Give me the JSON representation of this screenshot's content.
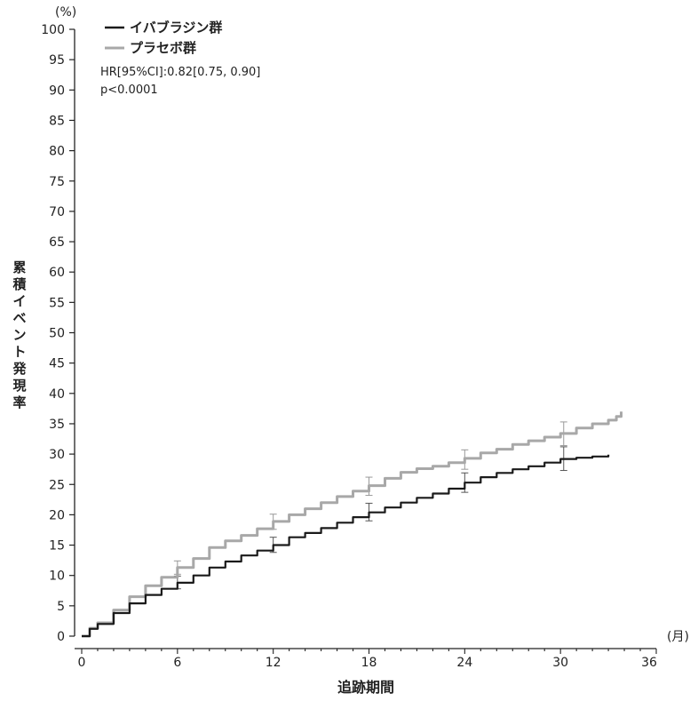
{
  "chart_data": {
    "type": "line",
    "title": "",
    "xlabel": "追跡期間",
    "ylabel_chars": [
      "累",
      "積",
      "イ",
      "ベ",
      "ン",
      "ト",
      "発",
      "現",
      "率"
    ],
    "y_unit": "(%)",
    "x_unit": "(月)",
    "xlim": [
      0,
      36
    ],
    "ylim": [
      0,
      100
    ],
    "x_ticks": [
      0,
      6,
      12,
      18,
      24,
      30,
      36
    ],
    "y_ticks": [
      0,
      5,
      10,
      15,
      20,
      25,
      30,
      35,
      40,
      45,
      50,
      55,
      60,
      65,
      70,
      75,
      80,
      85,
      90,
      95,
      100
    ],
    "grid": false,
    "legend_position": "top-left",
    "annotations": {
      "hr": "HR[95%CI]:0.82[0.75, 0.90]",
      "p": "p<0.0001"
    },
    "series": [
      {
        "name": "イバブラジン群",
        "color": "#1a1a1a",
        "x": [
          0,
          0.5,
          1,
          2,
          3,
          4,
          5,
          6,
          7,
          8,
          9,
          10,
          11,
          12,
          13,
          14,
          15,
          16,
          17,
          18,
          19,
          20,
          21,
          22,
          23,
          24,
          25,
          26,
          27,
          28,
          29,
          30,
          31,
          32,
          33
        ],
        "y": [
          0,
          1.2,
          2.0,
          3.8,
          5.4,
          6.8,
          7.8,
          8.8,
          10.0,
          11.3,
          12.3,
          13.3,
          14.1,
          15.0,
          16.3,
          17.0,
          17.8,
          18.7,
          19.6,
          20.4,
          21.2,
          22.0,
          22.8,
          23.5,
          24.3,
          25.3,
          26.2,
          26.9,
          27.5,
          28.0,
          28.6,
          29.2,
          29.4,
          29.6,
          29.9
        ]
      },
      {
        "name": "プラセボ群",
        "color": "#a8a8a8",
        "x": [
          0,
          0.5,
          1,
          2,
          3,
          4,
          5,
          6,
          7,
          8,
          9,
          10,
          11,
          12,
          13,
          14,
          15,
          16,
          17,
          18,
          19,
          20,
          21,
          22,
          23,
          24,
          25,
          26,
          27,
          28,
          29,
          30,
          31,
          32,
          33,
          33.5,
          33.8
        ],
        "y": [
          0,
          1.3,
          2.2,
          4.3,
          6.5,
          8.3,
          9.7,
          11.3,
          12.8,
          14.6,
          15.7,
          16.6,
          17.7,
          18.9,
          20.0,
          21.0,
          22.0,
          23.0,
          23.9,
          24.8,
          26.0,
          27.0,
          27.6,
          28.0,
          28.6,
          29.3,
          30.2,
          30.8,
          31.6,
          32.2,
          32.8,
          33.4,
          34.3,
          35.0,
          35.6,
          36.2,
          37.0
        ]
      }
    ],
    "error_bars": [
      {
        "series": "イバブラジン群",
        "x": 6,
        "low": 7.8,
        "high": 9.9
      },
      {
        "series": "イバブラジン群",
        "x": 12,
        "low": 13.8,
        "high": 16.3
      },
      {
        "series": "イバブラジン群",
        "x": 18,
        "low": 19.0,
        "high": 21.9
      },
      {
        "series": "イバブラジン群",
        "x": 24,
        "low": 23.7,
        "high": 26.9
      },
      {
        "series": "イバブラジン群",
        "x": 30.2,
        "low": 27.3,
        "high": 31.2
      },
      {
        "series": "プラセボ群",
        "x": 6,
        "low": 10.2,
        "high": 12.4
      },
      {
        "series": "プラセボ群",
        "x": 12,
        "low": 17.6,
        "high": 20.1
      },
      {
        "series": "プラセボ群",
        "x": 18,
        "low": 23.2,
        "high": 26.2
      },
      {
        "series": "プラセボ群",
        "x": 24,
        "low": 27.5,
        "high": 30.7
      },
      {
        "series": "プラセボ群",
        "x": 30.2,
        "low": 31.4,
        "high": 35.3
      }
    ]
  }
}
